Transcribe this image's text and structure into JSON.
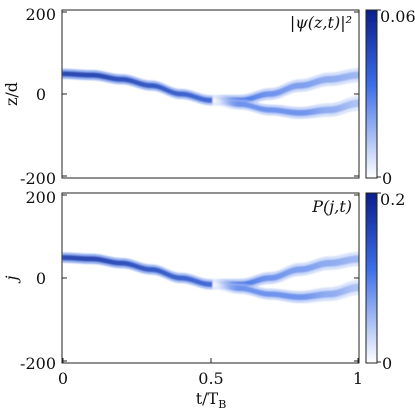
{
  "chart_data": [
    {
      "type": "heatmap",
      "annotation": "|ψ(z,t)|²",
      "ylabel": "z/d",
      "xlabel": "",
      "xlim": [
        0,
        1
      ],
      "ylim": [
        -200,
        200
      ],
      "yticks": [
        "200",
        "0",
        "-200"
      ],
      "colorbar": {
        "min": 0,
        "max": 0.06,
        "ticks": [
          "0.06",
          "0"
        ]
      },
      "colormap": [
        "#ffffff",
        "#3d6fe6",
        "#0a1e8a"
      ],
      "tracks": [
        {
          "name": "upper",
          "t": [
            0,
            0.1,
            0.2,
            0.3,
            0.4,
            0.5,
            0.6,
            0.7,
            0.8,
            0.9,
            1.0
          ],
          "z": [
            48,
            45,
            35,
            20,
            0,
            -15,
            -15,
            0,
            20,
            35,
            45
          ],
          "width": [
            12,
            12,
            12,
            12,
            12,
            12,
            13,
            14,
            15,
            16,
            17
          ],
          "intensity": [
            0.85,
            0.85,
            0.8,
            0.75,
            0.7,
            0.65,
            0.55,
            0.45,
            0.4,
            0.35,
            0.3
          ]
        },
        {
          "name": "lower",
          "t": [
            0.5,
            0.6,
            0.7,
            0.8,
            0.9,
            1.0
          ],
          "z": [
            -15,
            -25,
            -38,
            -45,
            -38,
            -22
          ],
          "width": [
            12,
            12,
            13,
            14,
            16,
            18
          ],
          "intensity": [
            0.0,
            0.45,
            0.45,
            0.45,
            0.35,
            0.25
          ]
        }
      ]
    },
    {
      "type": "heatmap",
      "annotation": "P(j,t)",
      "ylabel": "j",
      "xlabel": "t/T_B",
      "xlim": [
        0,
        1
      ],
      "ylim": [
        -200,
        200
      ],
      "xticks": [
        "0",
        "0.5",
        "1"
      ],
      "yticks": [
        "200",
        "0",
        "-200"
      ],
      "colorbar": {
        "min": 0,
        "max": 0.2,
        "ticks": [
          "0.2",
          "0"
        ]
      },
      "colormap": [
        "#ffffff",
        "#3d6fe6",
        "#0a1e8a"
      ],
      "tracks": [
        {
          "name": "upper",
          "t": [
            0,
            0.1,
            0.2,
            0.3,
            0.4,
            0.5,
            0.6,
            0.7,
            0.8,
            0.9,
            1.0
          ],
          "z": [
            48,
            45,
            35,
            20,
            0,
            -15,
            -15,
            0,
            20,
            35,
            45
          ],
          "width": [
            12,
            12,
            12,
            12,
            12,
            12,
            13,
            14,
            15,
            16,
            17
          ],
          "intensity": [
            0.85,
            0.85,
            0.8,
            0.75,
            0.7,
            0.65,
            0.55,
            0.45,
            0.4,
            0.35,
            0.3
          ]
        },
        {
          "name": "lower",
          "t": [
            0.5,
            0.6,
            0.7,
            0.8,
            0.9,
            1.0
          ],
          "z": [
            -15,
            -25,
            -38,
            -45,
            -38,
            -22
          ],
          "width": [
            12,
            12,
            13,
            14,
            16,
            18
          ],
          "intensity": [
            0.0,
            0.45,
            0.45,
            0.45,
            0.35,
            0.25
          ]
        }
      ]
    }
  ]
}
